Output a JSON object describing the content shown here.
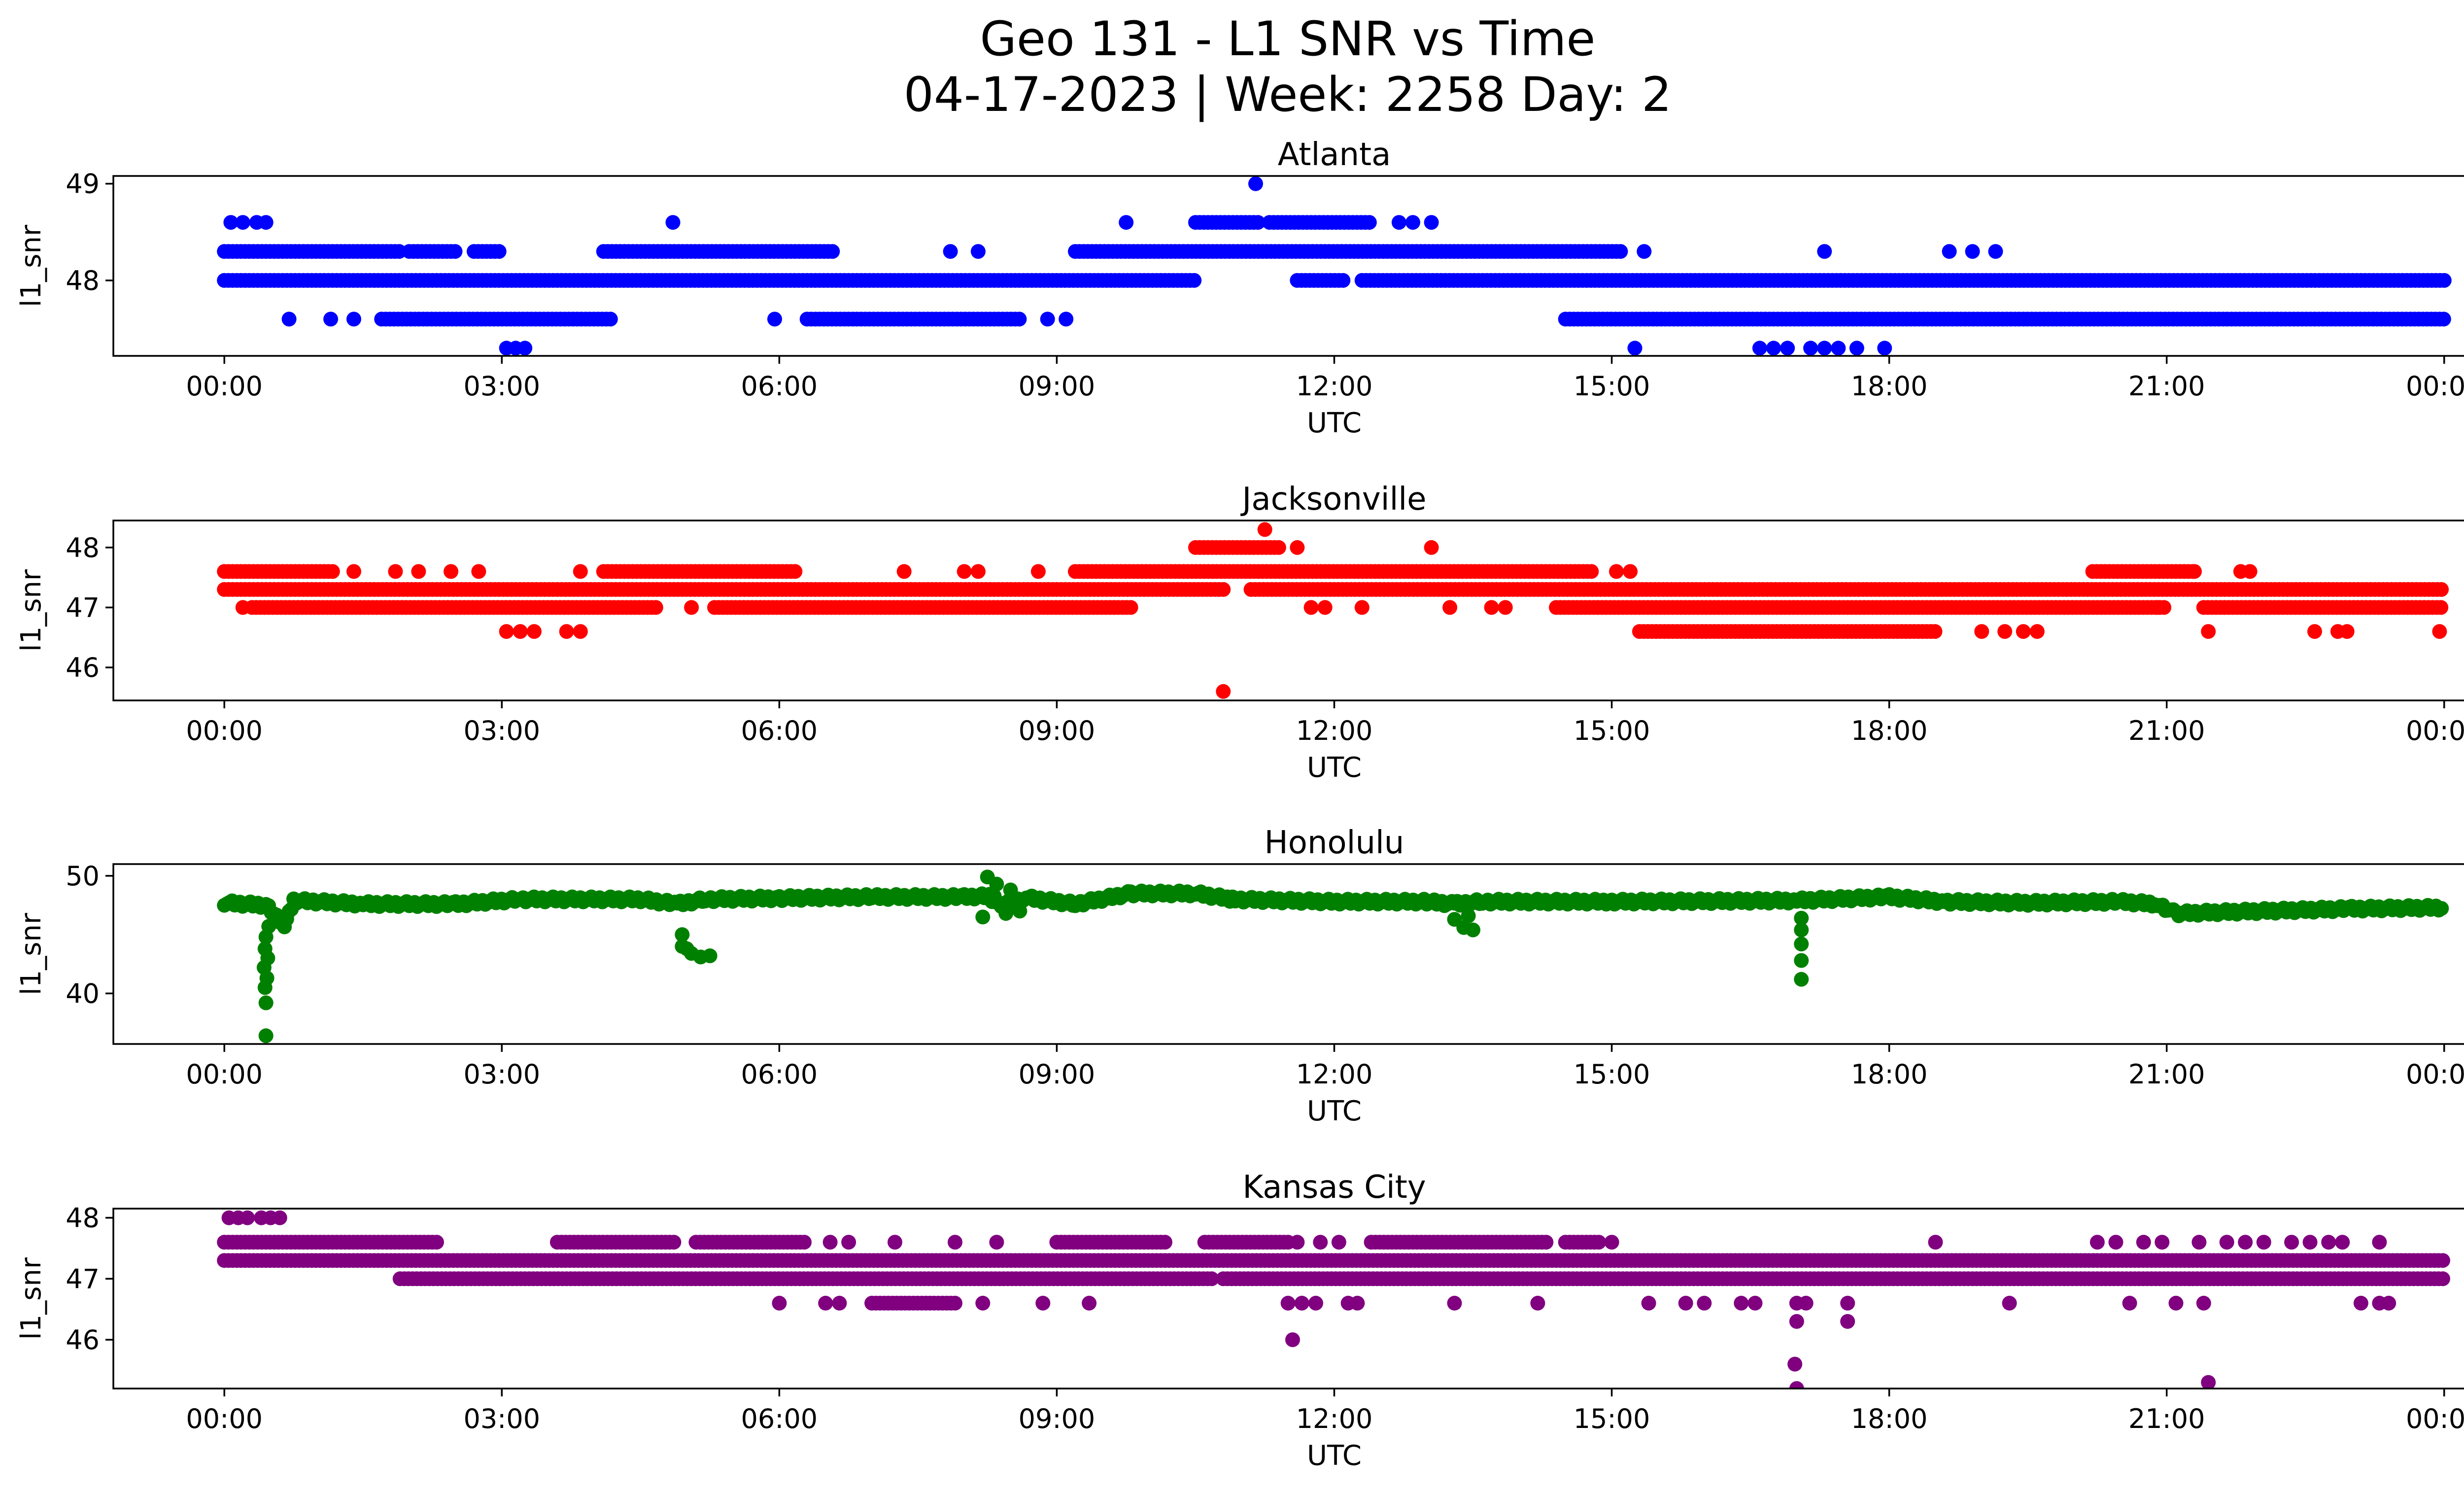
{
  "figure": {
    "title_line1": "Geo 131 - L1 SNR vs Time",
    "title_line2": "04-17-2023 | Week: 2258 Day: 2"
  },
  "chart_data": [
    {
      "type": "scatter",
      "title": "Atlanta",
      "xlabel": "UTC",
      "ylabel": "l1_snr",
      "color": "#0000ff",
      "x_unit": "hours UTC",
      "x_ticks": [
        "00:00",
        "03:00",
        "06:00",
        "09:00",
        "12:00",
        "15:00",
        "18:00",
        "21:00",
        "00:00"
      ],
      "xlim": [
        -1.2,
        25.2
      ],
      "ylim": [
        47.22,
        49.08
      ],
      "y_ticks": [
        48,
        49
      ],
      "y_tick_labels": [
        "48",
        "49"
      ],
      "bands": [
        {
          "y": 48.0,
          "ranges": [
            [
              0.0,
              10.5
            ],
            [
              11.6,
              12.1
            ],
            [
              12.3,
              24.0
            ]
          ]
        },
        {
          "y": 48.3,
          "ranges": [
            [
              0.0,
              1.9
            ],
            [
              2.0,
              2.5
            ],
            [
              2.7,
              3.0
            ],
            [
              4.1,
              6.6
            ],
            [
              9.2,
              15.1
            ]
          ]
        },
        {
          "y": 48.6,
          "ranges": [
            [
              10.5,
              11.2
            ],
            [
              11.3,
              12.4
            ]
          ]
        },
        {
          "y": 47.6,
          "ranges": [
            [
              1.7,
              4.2
            ],
            [
              6.3,
              8.6
            ],
            [
              14.5,
              24.0
            ]
          ]
        }
      ],
      "points": [
        {
          "x": 0.07,
          "y": 48.6
        },
        {
          "x": 0.2,
          "y": 48.6
        },
        {
          "x": 0.35,
          "y": 48.6
        },
        {
          "x": 0.45,
          "y": 48.6
        },
        {
          "x": 4.85,
          "y": 48.6
        },
        {
          "x": 9.75,
          "y": 48.6
        },
        {
          "x": 11.15,
          "y": 49.0
        },
        {
          "x": 12.7,
          "y": 48.6
        },
        {
          "x": 12.85,
          "y": 48.6
        },
        {
          "x": 13.05,
          "y": 48.6
        },
        {
          "x": 0.7,
          "y": 47.6
        },
        {
          "x": 1.15,
          "y": 47.6
        },
        {
          "x": 1.4,
          "y": 47.6
        },
        {
          "x": 5.95,
          "y": 47.6
        },
        {
          "x": 8.9,
          "y": 47.6
        },
        {
          "x": 9.1,
          "y": 47.6
        },
        {
          "x": 3.05,
          "y": 47.3
        },
        {
          "x": 3.15,
          "y": 47.3
        },
        {
          "x": 3.25,
          "y": 47.3
        },
        {
          "x": 15.25,
          "y": 47.3
        },
        {
          "x": 16.6,
          "y": 47.3
        },
        {
          "x": 16.75,
          "y": 47.3
        },
        {
          "x": 16.9,
          "y": 47.3
        },
        {
          "x": 17.15,
          "y": 47.3
        },
        {
          "x": 17.3,
          "y": 47.3
        },
        {
          "x": 17.45,
          "y": 47.3
        },
        {
          "x": 17.65,
          "y": 47.3
        },
        {
          "x": 17.95,
          "y": 47.3
        },
        {
          "x": 7.85,
          "y": 48.3
        },
        {
          "x": 8.15,
          "y": 48.3
        },
        {
          "x": 15.35,
          "y": 48.3
        },
        {
          "x": 17.3,
          "y": 48.3
        },
        {
          "x": 18.65,
          "y": 48.3
        },
        {
          "x": 18.9,
          "y": 48.3
        },
        {
          "x": 19.15,
          "y": 48.3
        }
      ]
    },
    {
      "type": "scatter",
      "title": "Jacksonville",
      "xlabel": "UTC",
      "ylabel": "l1_snr",
      "color": "#ff0000",
      "x_unit": "hours UTC",
      "x_ticks": [
        "00:00",
        "03:00",
        "06:00",
        "09:00",
        "12:00",
        "15:00",
        "18:00",
        "21:00",
        "00:00"
      ],
      "xlim": [
        -1.2,
        25.2
      ],
      "ylim": [
        45.45,
        48.45
      ],
      "y_ticks": [
        46,
        47,
        48
      ],
      "y_tick_labels": [
        "46",
        "47",
        "48"
      ],
      "bands": [
        {
          "y": 47.3,
          "ranges": [
            [
              0.0,
              10.8
            ],
            [
              11.1,
              24.0
            ]
          ]
        },
        {
          "y": 47.0,
          "ranges": [
            [
              0.3,
              4.7
            ],
            [
              5.3,
              9.8
            ],
            [
              14.4,
              21.0
            ],
            [
              21.4,
              24.0
            ]
          ]
        },
        {
          "y": 47.6,
          "ranges": [
            [
              0.0,
              1.2
            ],
            [
              4.1,
              6.2
            ],
            [
              9.2,
              14.8
            ],
            [
              20.2,
              21.3
            ]
          ]
        },
        {
          "y": 46.6,
          "ranges": [
            [
              15.3,
              18.5
            ]
          ]
        },
        {
          "y": 48.0,
          "ranges": [
            [
              10.5,
              11.4
            ]
          ]
        }
      ],
      "points": [
        {
          "x": 11.25,
          "y": 48.3
        },
        {
          "x": 13.05,
          "y": 48.0
        },
        {
          "x": 11.6,
          "y": 48.0
        },
        {
          "x": 10.8,
          "y": 45.6
        },
        {
          "x": 3.05,
          "y": 46.6
        },
        {
          "x": 3.2,
          "y": 46.6
        },
        {
          "x": 3.35,
          "y": 46.6
        },
        {
          "x": 3.7,
          "y": 46.6
        },
        {
          "x": 3.85,
          "y": 46.6
        },
        {
          "x": 19.0,
          "y": 46.6
        },
        {
          "x": 19.25,
          "y": 46.6
        },
        {
          "x": 19.45,
          "y": 46.6
        },
        {
          "x": 19.6,
          "y": 46.6
        },
        {
          "x": 21.45,
          "y": 46.6
        },
        {
          "x": 22.6,
          "y": 46.6
        },
        {
          "x": 22.85,
          "y": 46.6
        },
        {
          "x": 22.95,
          "y": 46.6
        },
        {
          "x": 23.95,
          "y": 46.6
        },
        {
          "x": 0.2,
          "y": 47.0
        },
        {
          "x": 5.05,
          "y": 47.0
        },
        {
          "x": 11.75,
          "y": 47.0
        },
        {
          "x": 11.9,
          "y": 47.0
        },
        {
          "x": 12.3,
          "y": 47.0
        },
        {
          "x": 13.25,
          "y": 47.0
        },
        {
          "x": 13.7,
          "y": 47.0
        },
        {
          "x": 13.85,
          "y": 47.0
        },
        {
          "x": 20.9,
          "y": 47.0
        },
        {
          "x": 1.4,
          "y": 47.6
        },
        {
          "x": 1.85,
          "y": 47.6
        },
        {
          "x": 2.1,
          "y": 47.6
        },
        {
          "x": 2.45,
          "y": 47.6
        },
        {
          "x": 2.75,
          "y": 47.6
        },
        {
          "x": 3.85,
          "y": 47.6
        },
        {
          "x": 7.35,
          "y": 47.6
        },
        {
          "x": 8.0,
          "y": 47.6
        },
        {
          "x": 8.15,
          "y": 47.6
        },
        {
          "x": 8.8,
          "y": 47.6
        },
        {
          "x": 15.05,
          "y": 47.6
        },
        {
          "x": 15.2,
          "y": 47.6
        },
        {
          "x": 21.3,
          "y": 47.6
        },
        {
          "x": 21.8,
          "y": 47.6
        },
        {
          "x": 21.9,
          "y": 47.6
        }
      ]
    },
    {
      "type": "scatter",
      "title": "Honolulu",
      "xlabel": "UTC",
      "ylabel": "l1_snr",
      "color": "#008000",
      "x_unit": "hours UTC",
      "x_ticks": [
        "00:00",
        "03:00",
        "06:00",
        "09:00",
        "12:00",
        "15:00",
        "18:00",
        "21:00",
        "00:00"
      ],
      "xlim": [
        -1.2,
        25.2
      ],
      "ylim": [
        35.7,
        51.0
      ],
      "y_ticks": [
        40,
        50
      ],
      "y_tick_labels": [
        "40",
        "50"
      ],
      "baseline": [
        [
          0.0,
          47.7
        ],
        [
          0.45,
          47.5
        ],
        [
          0.65,
          45.8
        ],
        [
          0.75,
          47.9
        ],
        [
          1.5,
          47.6
        ],
        [
          2.5,
          47.6
        ],
        [
          3.2,
          48.0
        ],
        [
          4.5,
          48.0
        ],
        [
          4.9,
          47.6
        ],
        [
          5.2,
          48.0
        ],
        [
          6.0,
          48.1
        ],
        [
          7.0,
          48.2
        ],
        [
          8.0,
          48.2
        ],
        [
          8.3,
          48.3
        ],
        [
          8.4,
          47.6
        ],
        [
          8.7,
          48.1
        ],
        [
          9.2,
          47.6
        ],
        [
          9.8,
          48.5
        ],
        [
          10.5,
          48.5
        ],
        [
          10.9,
          48.0
        ],
        [
          12.0,
          47.8
        ],
        [
          13.0,
          47.8
        ],
        [
          13.3,
          47.6
        ],
        [
          13.6,
          47.8
        ],
        [
          15.0,
          47.8
        ],
        [
          17.0,
          47.9
        ],
        [
          18.0,
          48.2
        ],
        [
          18.6,
          47.8
        ],
        [
          19.5,
          47.7
        ],
        [
          20.5,
          47.8
        ],
        [
          20.9,
          47.6
        ],
        [
          21.1,
          46.8
        ],
        [
          22.0,
          47.0
        ],
        [
          23.0,
          47.2
        ],
        [
          24.0,
          47.3
        ]
      ],
      "points": [
        {
          "x": 0.45,
          "y": 36.4
        },
        {
          "x": 0.45,
          "y": 39.2
        },
        {
          "x": 0.44,
          "y": 40.5
        },
        {
          "x": 0.46,
          "y": 41.3
        },
        {
          "x": 0.43,
          "y": 42.2
        },
        {
          "x": 0.47,
          "y": 43.0
        },
        {
          "x": 0.44,
          "y": 43.8
        },
        {
          "x": 0.45,
          "y": 44.8
        },
        {
          "x": 0.48,
          "y": 45.7
        },
        {
          "x": 0.55,
          "y": 46.4
        },
        {
          "x": 4.95,
          "y": 45.0
        },
        {
          "x": 4.95,
          "y": 44.0
        },
        {
          "x": 5.05,
          "y": 43.4
        },
        {
          "x": 5.15,
          "y": 43.1
        },
        {
          "x": 5.25,
          "y": 43.2
        },
        {
          "x": 5.0,
          "y": 43.8
        },
        {
          "x": 8.25,
          "y": 49.9
        },
        {
          "x": 8.35,
          "y": 49.3
        },
        {
          "x": 8.2,
          "y": 46.5
        },
        {
          "x": 8.45,
          "y": 46.8
        },
        {
          "x": 8.6,
          "y": 47.0
        },
        {
          "x": 8.3,
          "y": 47.8
        },
        {
          "x": 8.5,
          "y": 48.8
        },
        {
          "x": 13.4,
          "y": 45.6
        },
        {
          "x": 13.5,
          "y": 45.4
        },
        {
          "x": 13.3,
          "y": 46.3
        },
        {
          "x": 13.45,
          "y": 46.6
        },
        {
          "x": 17.05,
          "y": 41.2
        },
        {
          "x": 17.05,
          "y": 42.8
        },
        {
          "x": 17.05,
          "y": 44.2
        },
        {
          "x": 17.05,
          "y": 45.4
        },
        {
          "x": 17.05,
          "y": 46.4
        }
      ]
    },
    {
      "type": "scatter",
      "title": "Kansas City",
      "xlabel": "UTC",
      "ylabel": "l1_snr",
      "color": "#800080",
      "x_unit": "hours UTC",
      "x_ticks": [
        "00:00",
        "03:00",
        "06:00",
        "09:00",
        "12:00",
        "15:00",
        "18:00",
        "21:00",
        "00:00"
      ],
      "xlim": [
        -1.2,
        25.2
      ],
      "ylim": [
        45.2,
        48.15
      ],
      "y_ticks": [
        46,
        47,
        48
      ],
      "y_tick_labels": [
        "46",
        "47",
        "48"
      ],
      "bands": [
        {
          "y": 47.3,
          "ranges": [
            [
              0.0,
              24.0
            ]
          ]
        },
        {
          "y": 47.6,
          "ranges": [
            [
              0.0,
              2.3
            ],
            [
              3.6,
              4.9
            ],
            [
              5.1,
              6.3
            ],
            [
              9.0,
              10.2
            ],
            [
              10.6,
              11.5
            ],
            [
              12.4,
              14.3
            ],
            [
              14.5,
              14.9
            ]
          ]
        },
        {
          "y": 47.0,
          "ranges": [
            [
              1.9,
              10.7
            ],
            [
              10.8,
              24.0
            ]
          ]
        },
        {
          "y": 46.6,
          "ranges": [
            [
              7.0,
              7.9
            ]
          ]
        }
      ],
      "points": [
        {
          "x": 0.05,
          "y": 48.0
        },
        {
          "x": 0.15,
          "y": 48.0
        },
        {
          "x": 0.25,
          "y": 48.0
        },
        {
          "x": 0.4,
          "y": 48.0
        },
        {
          "x": 0.5,
          "y": 48.0
        },
        {
          "x": 0.6,
          "y": 48.0
        },
        {
          "x": 6.55,
          "y": 47.6
        },
        {
          "x": 6.75,
          "y": 47.6
        },
        {
          "x": 7.25,
          "y": 47.6
        },
        {
          "x": 7.9,
          "y": 47.6
        },
        {
          "x": 8.35,
          "y": 47.6
        },
        {
          "x": 11.6,
          "y": 47.6
        },
        {
          "x": 11.85,
          "y": 47.6
        },
        {
          "x": 12.05,
          "y": 47.6
        },
        {
          "x": 15.0,
          "y": 47.6
        },
        {
          "x": 18.5,
          "y": 47.6
        },
        {
          "x": 20.25,
          "y": 47.6
        },
        {
          "x": 20.45,
          "y": 47.6
        },
        {
          "x": 20.75,
          "y": 47.6
        },
        {
          "x": 20.95,
          "y": 47.6
        },
        {
          "x": 21.35,
          "y": 47.6
        },
        {
          "x": 21.65,
          "y": 47.6
        },
        {
          "x": 21.85,
          "y": 47.6
        },
        {
          "x": 22.05,
          "y": 47.6
        },
        {
          "x": 22.35,
          "y": 47.6
        },
        {
          "x": 22.55,
          "y": 47.6
        },
        {
          "x": 22.75,
          "y": 47.6
        },
        {
          "x": 22.9,
          "y": 47.6
        },
        {
          "x": 23.3,
          "y": 47.6
        },
        {
          "x": 6.0,
          "y": 46.6
        },
        {
          "x": 6.5,
          "y": 46.6
        },
        {
          "x": 6.65,
          "y": 46.6
        },
        {
          "x": 8.2,
          "y": 46.6
        },
        {
          "x": 8.85,
          "y": 46.6
        },
        {
          "x": 9.35,
          "y": 46.6
        },
        {
          "x": 11.5,
          "y": 46.6
        },
        {
          "x": 11.65,
          "y": 46.6
        },
        {
          "x": 11.8,
          "y": 46.6
        },
        {
          "x": 12.15,
          "y": 46.6
        },
        {
          "x": 12.25,
          "y": 46.6
        },
        {
          "x": 13.3,
          "y": 46.6
        },
        {
          "x": 14.2,
          "y": 46.6
        },
        {
          "x": 15.4,
          "y": 46.6
        },
        {
          "x": 15.8,
          "y": 46.6
        },
        {
          "x": 16.0,
          "y": 46.6
        },
        {
          "x": 16.4,
          "y": 46.6
        },
        {
          "x": 16.55,
          "y": 46.6
        },
        {
          "x": 17.0,
          "y": 46.6
        },
        {
          "x": 17.1,
          "y": 46.6
        },
        {
          "x": 17.55,
          "y": 46.6
        },
        {
          "x": 19.3,
          "y": 46.6
        },
        {
          "x": 20.6,
          "y": 46.6
        },
        {
          "x": 21.1,
          "y": 46.6
        },
        {
          "x": 21.4,
          "y": 46.6
        },
        {
          "x": 23.1,
          "y": 46.6
        },
        {
          "x": 23.3,
          "y": 46.6
        },
        {
          "x": 23.4,
          "y": 46.6
        },
        {
          "x": 11.55,
          "y": 46.0
        },
        {
          "x": 17.0,
          "y": 46.3
        },
        {
          "x": 17.55,
          "y": 46.3
        },
        {
          "x": 16.98,
          "y": 45.6
        },
        {
          "x": 17.0,
          "y": 45.2
        },
        {
          "x": 21.45,
          "y": 45.3
        }
      ]
    }
  ]
}
